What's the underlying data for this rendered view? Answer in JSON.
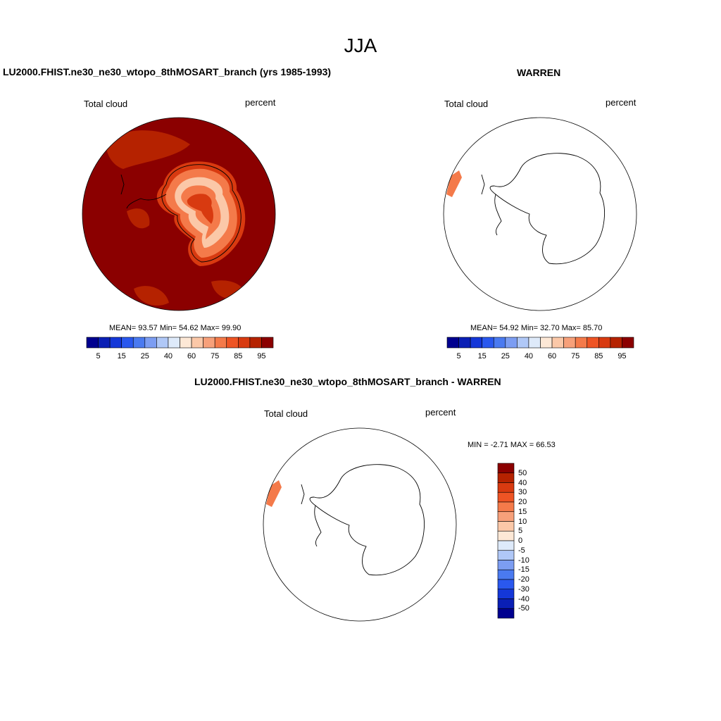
{
  "page": {
    "title": "JJA"
  },
  "colors": {
    "scale": [
      "#00008f",
      "#0a1fb5",
      "#1437d8",
      "#2a58ee",
      "#4a7af0",
      "#7c9df2",
      "#b0c8f7",
      "#deeafa",
      "#fde8d6",
      "#fbc8a8",
      "#f7a07a",
      "#f47a4a",
      "#ee5424",
      "#d83a10",
      "#b52200",
      "#8b0000"
    ],
    "diff_scale": [
      "#00008f",
      "#0a1fb5",
      "#1437d8",
      "#2a58ee",
      "#4a7af0",
      "#7c9df2",
      "#b0c8f7",
      "#deeafa",
      "#fde8d6",
      "#fbc8a8",
      "#f7a07a",
      "#f47a4a",
      "#ee5424",
      "#d83a10",
      "#b52200",
      "#8b0000"
    ]
  },
  "panels": {
    "model": {
      "title": "LU2000.FHIST.ne30_ne30_wtopo_8thMOSART_branch (yrs 1985-1993)",
      "variable": "Total cloud",
      "units": "percent",
      "stats": "MEAN=  93.57  Min=  54.62  Max=  99.90",
      "colorbar_labels": [
        "5",
        "15",
        "25",
        "40",
        "60",
        "75",
        "85",
        "95"
      ]
    },
    "obs": {
      "title": "WARREN",
      "variable": "Total cloud",
      "units": "percent",
      "stats": "MEAN=  54.92  Min=  32.70  Max=  85.70",
      "colorbar_labels": [
        "5",
        "15",
        "25",
        "40",
        "60",
        "75",
        "85",
        "95"
      ]
    },
    "diff": {
      "title": "LU2000.FHIST.ne30_ne30_wtopo_8thMOSART_branch - WARREN",
      "variable": "Total cloud",
      "units": "percent",
      "stats": "MIN =  -2.71 MAX =  66.53",
      "colorbar_labels": [
        "50",
        "40",
        "30",
        "20",
        "15",
        "10",
        "5",
        "0",
        "-5",
        "-10",
        "-15",
        "-20",
        "-30",
        "-40",
        "-50"
      ]
    }
  }
}
